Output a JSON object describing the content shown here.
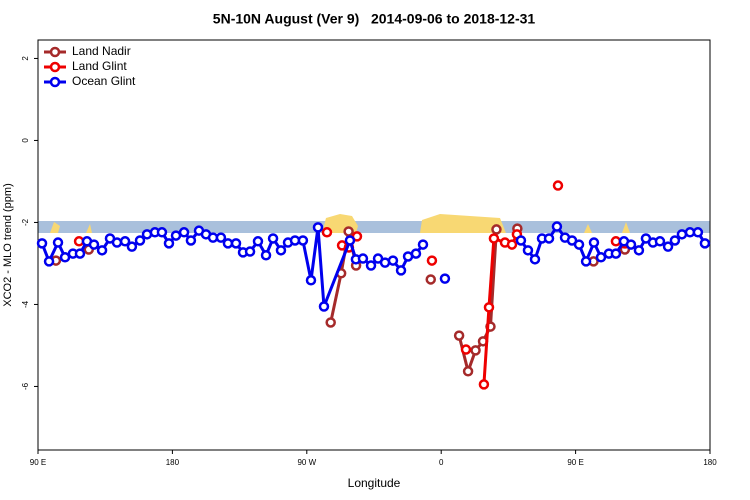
{
  "chart_data": {
    "type": "line",
    "title": "5N-10N August (Ver 9)   2014-09-06 to 2018-12-31",
    "x_label": "Longitude",
    "y_label": "XCO2 - MLO trend (ppm)",
    "xlim": [
      90,
      540
    ],
    "xticks": [
      {
        "value": 90,
        "label": "90 E"
      },
      180,
      {
        "value": 270,
        "label": "90 W"
      },
      {
        "value": 360,
        "label": "0"
      },
      {
        "value": 450,
        "label": "90 E"
      },
      {
        "value": 540,
        "label": "180"
      }
    ],
    "ylim": [
      -7.55,
      2.45
    ],
    "yticks": [
      -6,
      -4,
      -2,
      0,
      2
    ],
    "legend": "top-left",
    "series": [
      {
        "name": "Land Nadir",
        "color": "#a52a2a",
        "x": [
          102,
          null,
          124,
          null,
          286,
          293,
          298,
          303,
          null,
          353,
          null,
          372,
          378,
          383,
          388,
          393,
          397,
          null,
          411,
          null,
          462,
          null,
          483
        ],
        "values": [
          -2.93,
          null,
          -2.66,
          null,
          -4.44,
          -3.24,
          -2.22,
          -3.05,
          null,
          -3.39,
          null,
          -4.76,
          -5.63,
          -5.12,
          -4.9,
          -4.54,
          -2.17,
          null,
          -2.15,
          null,
          -2.95,
          null,
          -2.66
        ]
      },
      {
        "name": "Land Glint",
        "color": "#ee0000",
        "x": [
          117.5,
          null,
          283.5,
          null,
          293.6,
          298.2,
          303.6,
          null,
          353.8,
          null,
          376.6,
          null,
          388.6,
          392,
          395.3,
          402.7,
          407.4,
          410.7,
          null,
          438.2,
          null,
          477,
          null,
          483.1
        ],
        "values": [
          -2.46,
          null,
          -2.24,
          null,
          -2.56,
          -2.61,
          -2.34,
          null,
          -2.93,
          null,
          -5.1,
          null,
          -5.95,
          -4.07,
          -2.39,
          -2.49,
          -2.54,
          -2.29,
          null,
          -1.1,
          null,
          -2.46,
          null,
          -2.51
        ]
      },
      {
        "name": "Ocean Glint",
        "color": "#0000ee",
        "x": [
          92.7,
          97.4,
          103.4,
          108.1,
          113.4,
          118.1,
          122.8,
          127.5,
          132.9,
          138.2,
          142.9,
          148.3,
          152.9,
          158.3,
          163,
          168.3,
          173,
          177.7,
          182.4,
          187.8,
          192.4,
          197.8,
          202.5,
          207.2,
          212.5,
          217.2,
          222.6,
          227.3,
          232,
          237.3,
          242.7,
          247.4,
          252.7,
          257.4,
          262.1,
          267.4,
          272.8,
          277.5,
          281.5,
          298.9,
          302.9,
          307.6,
          313,
          317.7,
          322.4,
          327.7,
          333.1,
          337.8,
          343.1,
          347.8,
          null,
          362.5,
          null,
          413.4,
          418.1,
          422.8,
          427.5,
          432.2,
          437.5,
          442.9,
          447.6,
          452.3,
          457,
          462.3,
          467,
          472.3,
          477,
          482.4,
          487.1,
          492.4,
          497.1,
          501.8,
          506.5,
          511.9,
          516.5,
          521.2,
          526.6,
          531.9,
          536.6
        ],
        "values": [
          -2.51,
          -2.95,
          -2.49,
          -2.85,
          -2.76,
          -2.76,
          -2.46,
          -2.54,
          -2.68,
          -2.39,
          -2.49,
          -2.46,
          -2.59,
          -2.44,
          -2.29,
          -2.24,
          -2.24,
          -2.51,
          -2.32,
          -2.24,
          -2.44,
          -2.2,
          -2.29,
          -2.37,
          -2.37,
          -2.51,
          -2.51,
          -2.73,
          -2.71,
          -2.46,
          -2.8,
          -2.39,
          -2.68,
          -2.49,
          -2.44,
          -2.44,
          -3.41,
          -2.12,
          -4.05,
          -2.44,
          -2.9,
          -2.88,
          -3.05,
          -2.88,
          -2.98,
          -2.93,
          -3.17,
          -2.83,
          -2.76,
          -2.54,
          null,
          -3.37,
          null,
          -2.44,
          -2.68,
          -2.9,
          -2.39,
          -2.39,
          -2.1,
          -2.37,
          -2.44,
          -2.54,
          -2.95,
          -2.49,
          -2.85,
          -2.76,
          -2.76,
          -2.46,
          -2.54,
          -2.68,
          -2.39,
          -2.49,
          -2.46,
          -2.59,
          -2.44,
          -2.29,
          -2.24,
          -2.24,
          -2.51
        ]
      }
    ]
  }
}
